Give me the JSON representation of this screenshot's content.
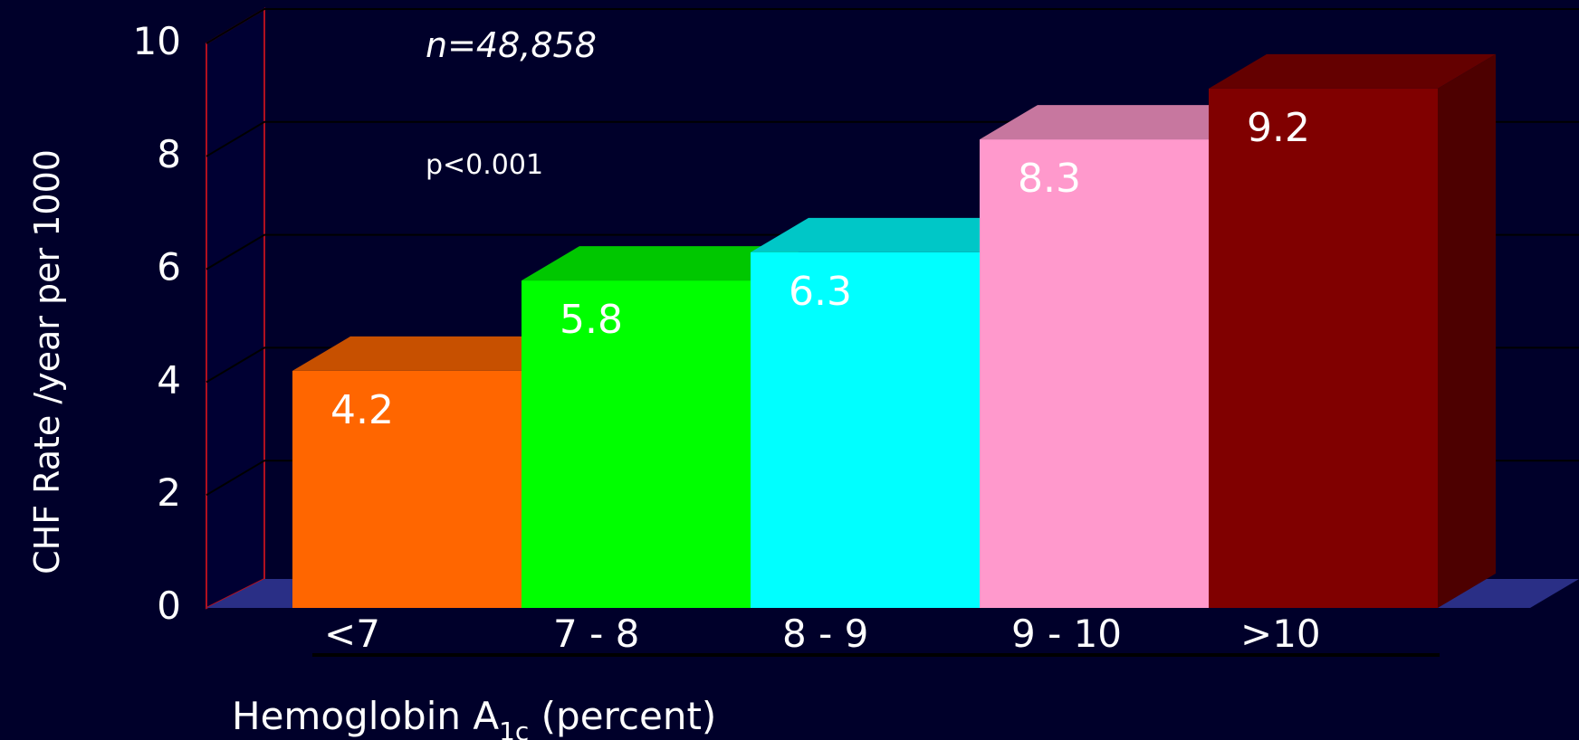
{
  "chart_data": {
    "type": "bar",
    "categories": [
      "<7",
      "7 - 8",
      "8 - 9",
      "9 - 10",
      ">10"
    ],
    "values": [
      4.2,
      5.8,
      6.3,
      8.3,
      9.2
    ],
    "data_labels": [
      "4.2",
      "5.8",
      "6.3",
      "8.3",
      "9.2"
    ],
    "colors": [
      "#ff6600",
      "#00ff00",
      "#00ffff",
      "#ff99cc",
      "#800000"
    ],
    "ylabel": "CHF Rate /year per 1000",
    "xlabel_main": "Hemoglobin A",
    "xlabel_sub": "1c",
    "xlabel_tail": " (percent)",
    "ylim": [
      0,
      10
    ],
    "yticks": [
      0,
      2,
      4,
      6,
      8,
      10
    ],
    "ytick_labels": [
      "0",
      "2",
      "4",
      "6",
      "8",
      "10"
    ],
    "annotations": [
      "n=48,858",
      "p<0.001"
    ],
    "grid": true,
    "style": "3d"
  }
}
